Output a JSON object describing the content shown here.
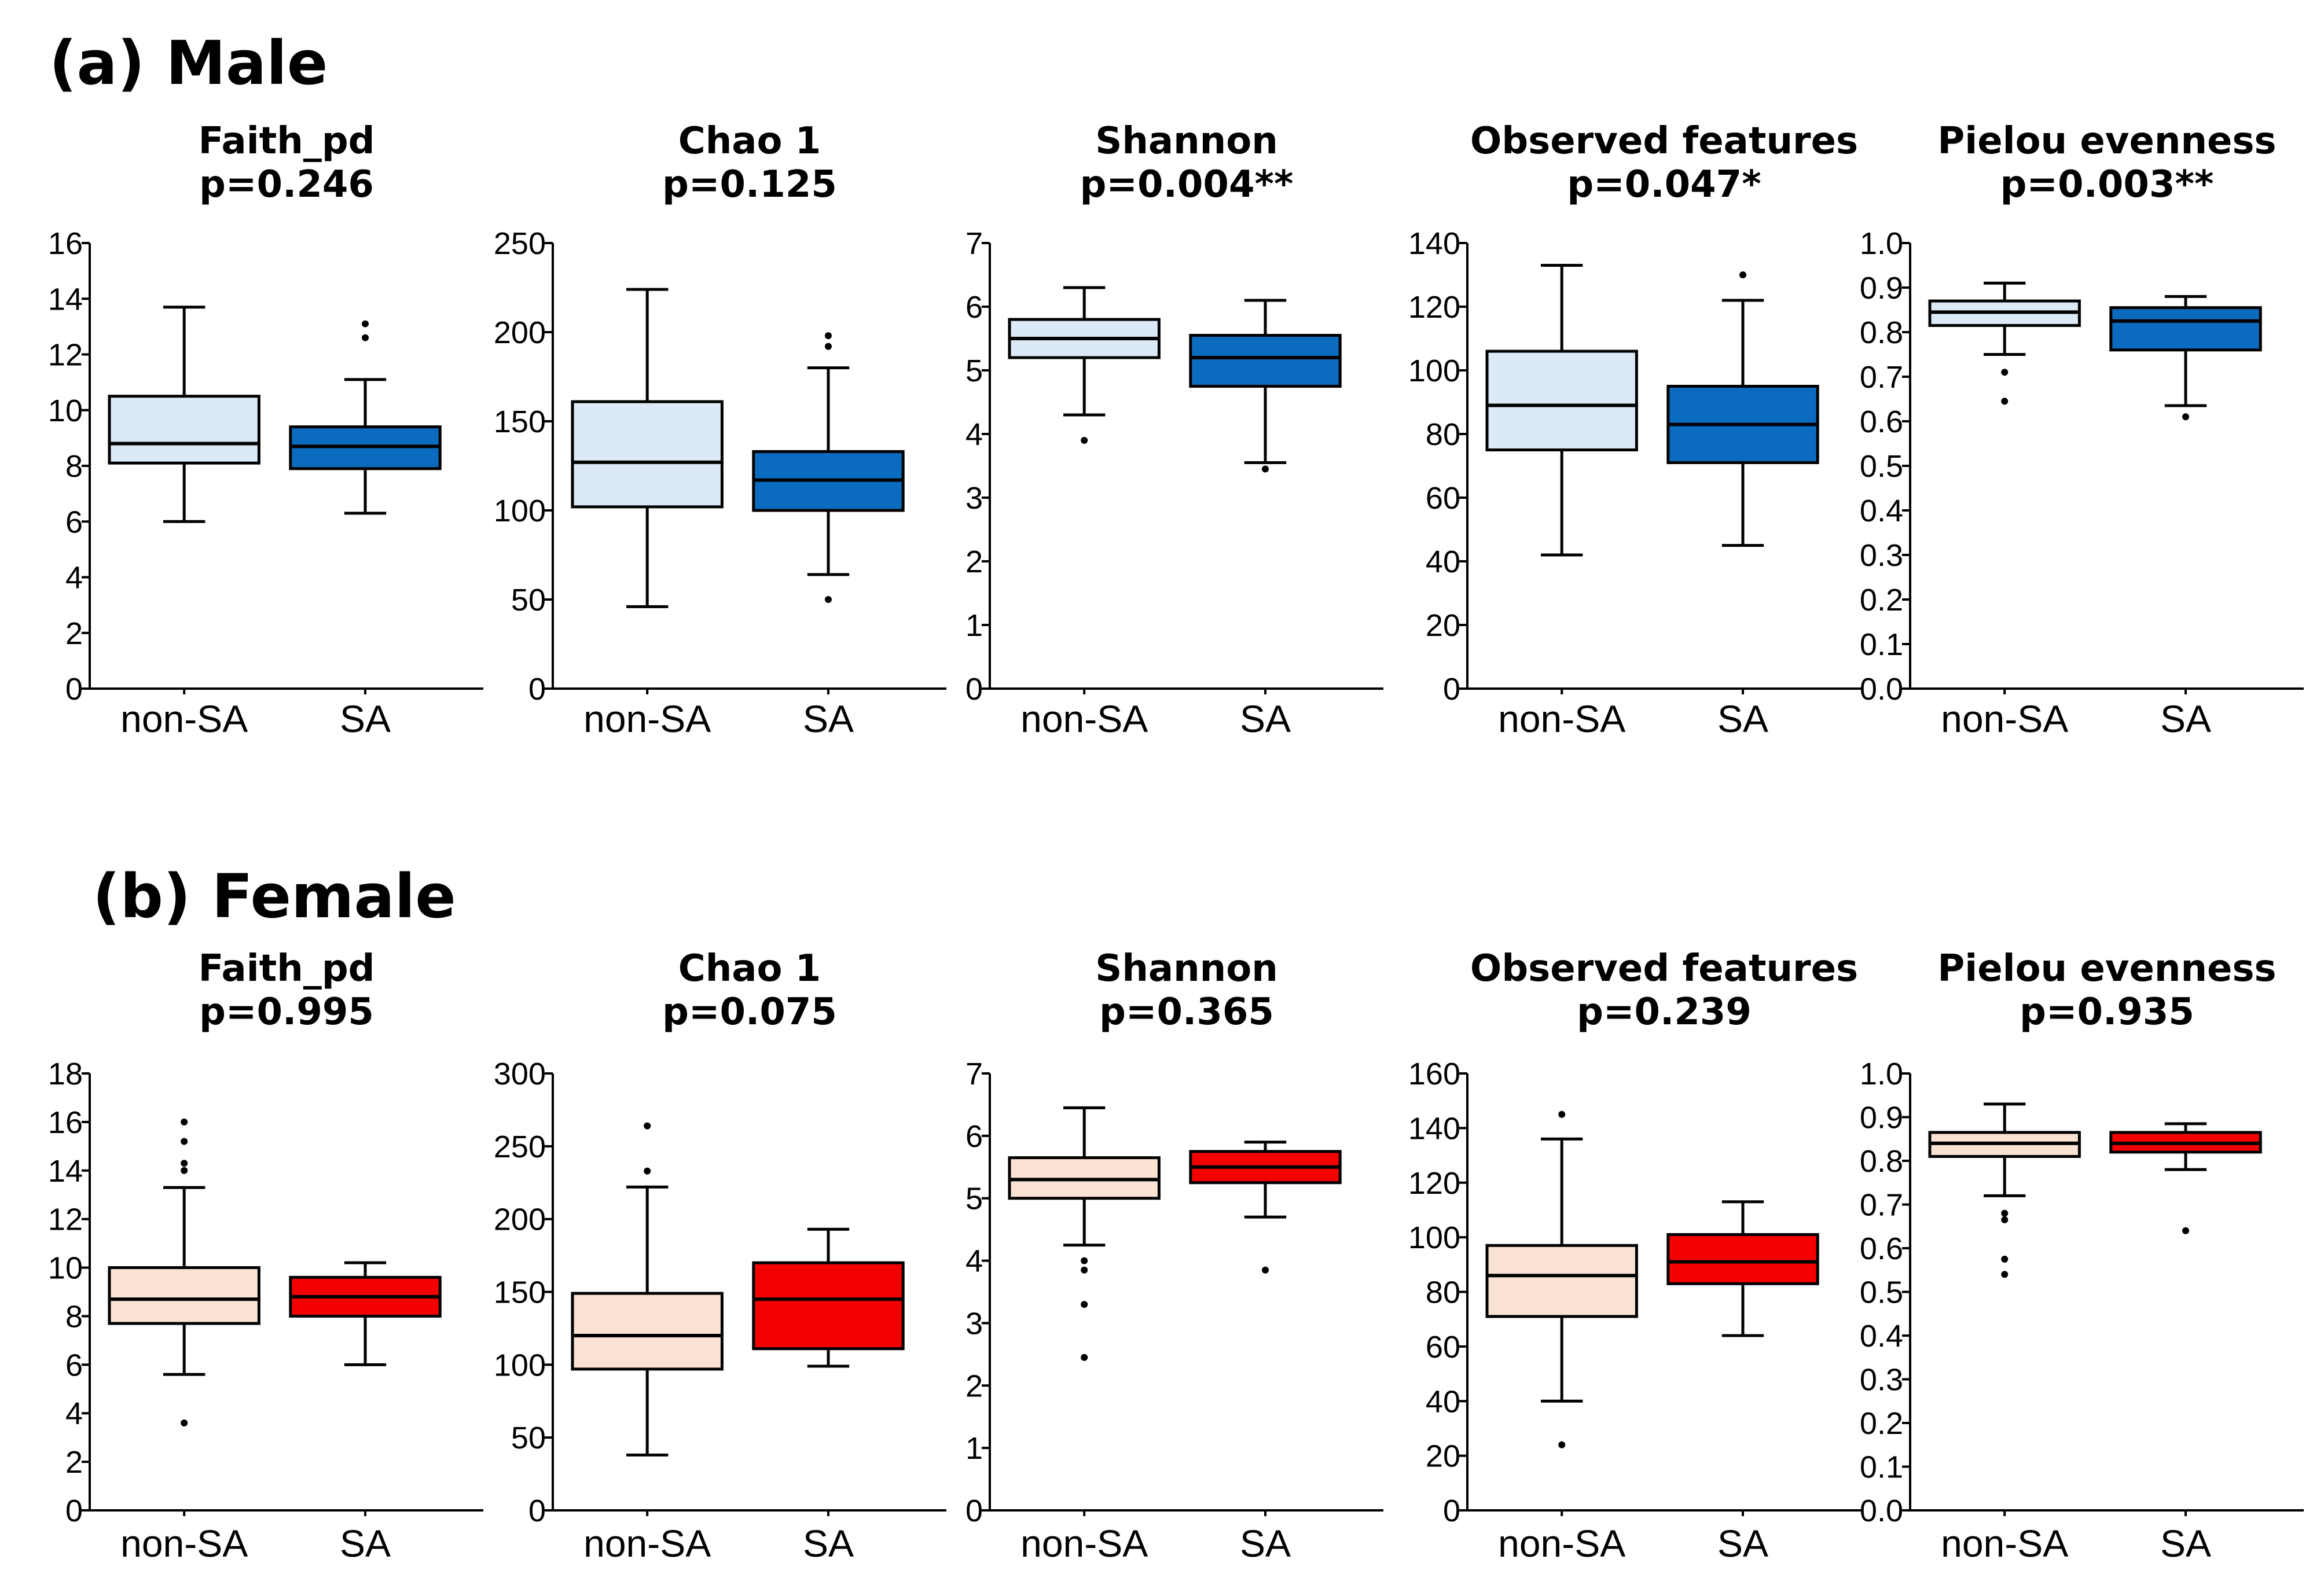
{
  "figure": {
    "sections": [
      {
        "id": "male",
        "title": "(a) Male"
      },
      {
        "id": "female",
        "title": "(b) Female"
      }
    ],
    "categories": [
      "non-SA",
      "SA"
    ]
  },
  "colors": {
    "male_nonSA": "#dce9f7",
    "male_SA": "#0b6cbf",
    "female_nonSA": "#fbe3d4",
    "female_SA": "#f40000",
    "stroke": "#000000"
  },
  "chart_data": [
    {
      "type": "box",
      "section": "male",
      "title": "Faith_pd",
      "pvalue": "p=0.246",
      "categories": [
        "non-SA",
        "SA"
      ],
      "ylim": [
        0,
        16
      ],
      "yticks": [
        0,
        2,
        4,
        6,
        8,
        10,
        12,
        14,
        16
      ],
      "tickDecimals": 0,
      "series": [
        {
          "name": "non-SA",
          "whisker_low": 6.0,
          "q1": 8.1,
          "median": 8.8,
          "q3": 10.5,
          "whisker_high": 13.7,
          "outliers": []
        },
        {
          "name": "SA",
          "whisker_low": 6.3,
          "q1": 7.9,
          "median": 8.7,
          "q3": 9.4,
          "whisker_high": 11.1,
          "outliers": [
            12.6,
            13.1
          ]
        }
      ]
    },
    {
      "type": "box",
      "section": "male",
      "title": "Chao 1",
      "pvalue": "p=0.125",
      "categories": [
        "non-SA",
        "SA"
      ],
      "ylim": [
        0,
        250
      ],
      "yticks": [
        0,
        50,
        100,
        150,
        200,
        250
      ],
      "tickDecimals": 0,
      "series": [
        {
          "name": "non-SA",
          "whisker_low": 46,
          "q1": 102,
          "median": 127,
          "q3": 161,
          "whisker_high": 224,
          "outliers": []
        },
        {
          "name": "SA",
          "whisker_low": 64,
          "q1": 100,
          "median": 117,
          "q3": 133,
          "whisker_high": 180,
          "outliers": [
            50,
            192,
            198
          ]
        }
      ]
    },
    {
      "type": "box",
      "section": "male",
      "title": "Shannon",
      "pvalue": "p=0.004**",
      "categories": [
        "non-SA",
        "SA"
      ],
      "ylim": [
        0,
        7
      ],
      "yticks": [
        0,
        1,
        2,
        3,
        4,
        5,
        6,
        7
      ],
      "tickDecimals": 0,
      "series": [
        {
          "name": "non-SA",
          "whisker_low": 4.3,
          "q1": 5.2,
          "median": 5.5,
          "q3": 5.8,
          "whisker_high": 6.3,
          "outliers": [
            3.9
          ]
        },
        {
          "name": "SA",
          "whisker_low": 3.55,
          "q1": 4.75,
          "median": 5.2,
          "q3": 5.55,
          "whisker_high": 6.1,
          "outliers": [
            3.45
          ]
        }
      ]
    },
    {
      "type": "box",
      "section": "male",
      "title": "Observed features",
      "pvalue": "p=0.047*",
      "categories": [
        "non-SA",
        "SA"
      ],
      "ylim": [
        0,
        140
      ],
      "yticks": [
        0,
        20,
        40,
        60,
        80,
        100,
        120,
        140
      ],
      "tickDecimals": 0,
      "series": [
        {
          "name": "non-SA",
          "whisker_low": 42,
          "q1": 75,
          "median": 89,
          "q3": 106,
          "whisker_high": 133,
          "outliers": []
        },
        {
          "name": "SA",
          "whisker_low": 45,
          "q1": 71,
          "median": 83,
          "q3": 95,
          "whisker_high": 122,
          "outliers": [
            130
          ]
        }
      ]
    },
    {
      "type": "box",
      "section": "male",
      "title": "Pielou evenness",
      "pvalue": "p=0.003**",
      "categories": [
        "non-SA",
        "SA"
      ],
      "ylim": [
        0,
        1
      ],
      "yticks": [
        0,
        0.1,
        0.2,
        0.3,
        0.4,
        0.5,
        0.6,
        0.7,
        0.8,
        0.9,
        1.0
      ],
      "tickDecimals": 1,
      "series": [
        {
          "name": "non-SA",
          "whisker_low": 0.75,
          "q1": 0.815,
          "median": 0.845,
          "q3": 0.87,
          "whisker_high": 0.91,
          "outliers": [
            0.71,
            0.645
          ]
        },
        {
          "name": "SA",
          "whisker_low": 0.635,
          "q1": 0.76,
          "median": 0.825,
          "q3": 0.855,
          "whisker_high": 0.88,
          "outliers": [
            0.61
          ]
        }
      ]
    },
    {
      "type": "box",
      "section": "female",
      "title": "Faith_pd",
      "pvalue": "p=0.995",
      "categories": [
        "non-SA",
        "SA"
      ],
      "ylim": [
        0,
        18
      ],
      "yticks": [
        0,
        2,
        4,
        6,
        8,
        10,
        12,
        14,
        16,
        18
      ],
      "tickDecimals": 0,
      "series": [
        {
          "name": "non-SA",
          "whisker_low": 5.6,
          "q1": 7.7,
          "median": 8.7,
          "q3": 10.0,
          "whisker_high": 13.3,
          "outliers": [
            3.6,
            14.0,
            14.3,
            15.2,
            16.0
          ]
        },
        {
          "name": "SA",
          "whisker_low": 6.0,
          "q1": 8.0,
          "median": 8.8,
          "q3": 9.6,
          "whisker_high": 10.2,
          "outliers": []
        }
      ]
    },
    {
      "type": "box",
      "section": "female",
      "title": "Chao 1",
      "pvalue": "p=0.075",
      "categories": [
        "non-SA",
        "SA"
      ],
      "ylim": [
        0,
        300
      ],
      "yticks": [
        0,
        50,
        100,
        150,
        200,
        250,
        300
      ],
      "tickDecimals": 0,
      "series": [
        {
          "name": "non-SA",
          "whisker_low": 38,
          "q1": 97,
          "median": 120,
          "q3": 149,
          "whisker_high": 222,
          "outliers": [
            233,
            264
          ]
        },
        {
          "name": "SA",
          "whisker_low": 99,
          "q1": 111,
          "median": 145,
          "q3": 170,
          "whisker_high": 193,
          "outliers": []
        }
      ]
    },
    {
      "type": "box",
      "section": "female",
      "title": "Shannon",
      "pvalue": "p=0.365",
      "categories": [
        "non-SA",
        "SA"
      ],
      "ylim": [
        0,
        7
      ],
      "yticks": [
        0,
        1,
        2,
        3,
        4,
        5,
        6,
        7
      ],
      "tickDecimals": 0,
      "series": [
        {
          "name": "non-SA",
          "whisker_low": 4.25,
          "q1": 5.0,
          "median": 5.3,
          "q3": 5.65,
          "whisker_high": 6.45,
          "outliers": [
            2.45,
            3.3,
            3.85,
            4.0
          ]
        },
        {
          "name": "SA",
          "whisker_low": 4.7,
          "q1": 5.25,
          "median": 5.5,
          "q3": 5.75,
          "whisker_high": 5.9,
          "outliers": [
            3.85
          ]
        }
      ]
    },
    {
      "type": "box",
      "section": "female",
      "title": "Observed features",
      "pvalue": "p=0.239",
      "categories": [
        "non-SA",
        "SA"
      ],
      "ylim": [
        0,
        160
      ],
      "yticks": [
        0,
        20,
        40,
        60,
        80,
        100,
        120,
        140,
        160
      ],
      "tickDecimals": 0,
      "series": [
        {
          "name": "non-SA",
          "whisker_low": 40,
          "q1": 71,
          "median": 86,
          "q3": 97,
          "whisker_high": 136,
          "outliers": [
            24,
            145
          ]
        },
        {
          "name": "SA",
          "whisker_low": 64,
          "q1": 83,
          "median": 91,
          "q3": 101,
          "whisker_high": 113,
          "outliers": []
        }
      ]
    },
    {
      "type": "box",
      "section": "female",
      "title": "Pielou evenness",
      "pvalue": "p=0.935",
      "categories": [
        "non-SA",
        "SA"
      ],
      "ylim": [
        0,
        1
      ],
      "yticks": [
        0,
        0.1,
        0.2,
        0.3,
        0.4,
        0.5,
        0.6,
        0.7,
        0.8,
        0.9,
        1.0
      ],
      "tickDecimals": 1,
      "series": [
        {
          "name": "non-SA",
          "whisker_low": 0.72,
          "q1": 0.81,
          "median": 0.84,
          "q3": 0.865,
          "whisker_high": 0.93,
          "outliers": [
            0.54,
            0.575,
            0.665,
            0.68
          ]
        },
        {
          "name": "SA",
          "whisker_low": 0.78,
          "q1": 0.82,
          "median": 0.84,
          "q3": 0.865,
          "whisker_high": 0.885,
          "outliers": [
            0.64
          ]
        }
      ]
    }
  ]
}
